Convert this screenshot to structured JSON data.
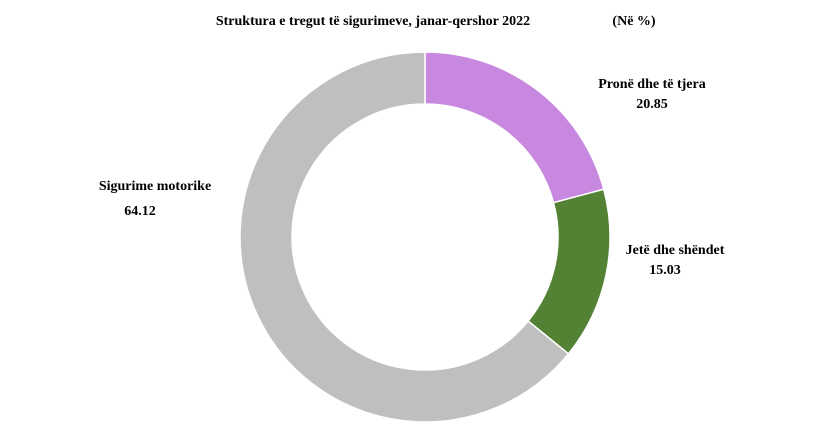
{
  "chart_data": {
    "type": "donut",
    "title": "Struktura e tregut të sigurimeve, janar-qershor 2022",
    "unit_label": "(Në %)",
    "categories": [
      "Pronë dhe të tjera",
      "Jetë dhe shëndet",
      "Sigurime motorike"
    ],
    "values": [
      20.85,
      15.03,
      64.12
    ],
    "colors": [
      "#c888e0",
      "#548235",
      "#bfbfbf"
    ]
  }
}
